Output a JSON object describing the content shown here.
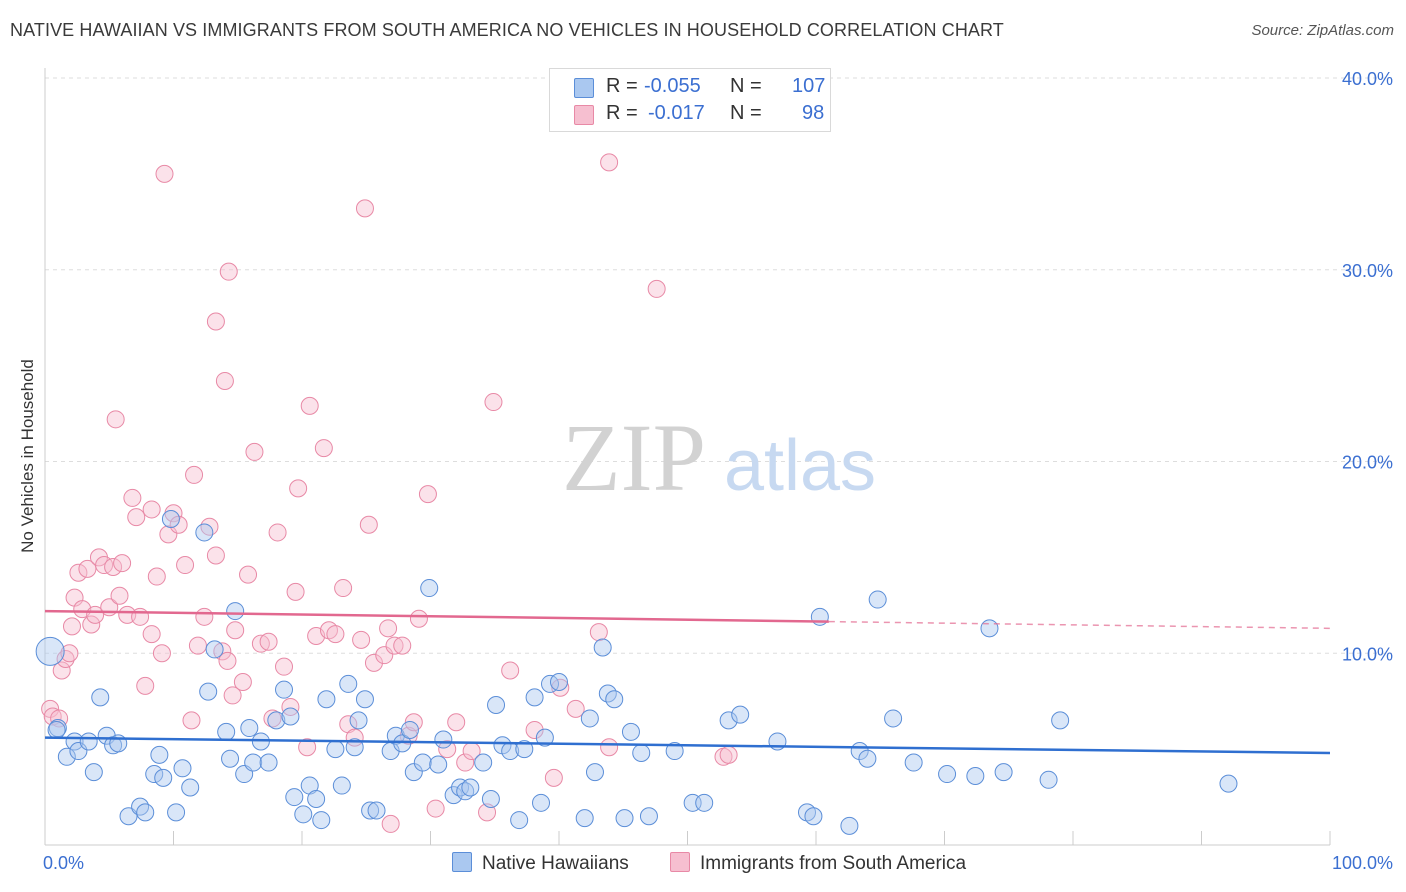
{
  "header": {
    "title": "NATIVE HAWAIIAN VS IMMIGRANTS FROM SOUTH AMERICA NO VEHICLES IN HOUSEHOLD CORRELATION CHART",
    "source": "Source: ZipAtlas.com"
  },
  "legend": {
    "rows": [
      {
        "r_label": "R =",
        "r_value": "-0.055",
        "n_label": "N =",
        "n_value": "107"
      },
      {
        "r_label": "R =",
        "r_value": "-0.017",
        "n_label": "N =",
        "n_value": "98"
      }
    ]
  },
  "watermark": {
    "zip": "ZIP",
    "atlas": "atlas"
  },
  "colors": {
    "blue_fill": "#aac8f0",
    "blue_stroke": "#5b8ed8",
    "blue_line": "#2f6fd0",
    "pink_fill": "#f6bfd0",
    "pink_stroke": "#e889a6",
    "pink_line": "#e2688f",
    "axis_text": "#3b6fd1",
    "grid": "#dddddd"
  },
  "chart_data": {
    "type": "scatter",
    "title": "NATIVE HAWAIIAN VS IMMIGRANTS FROM SOUTH AMERICA NO VEHICLES IN HOUSEHOLD CORRELATION CHART",
    "xlabel": "",
    "ylabel": "No Vehicles in Household",
    "xlim": [
      0,
      100
    ],
    "ylim": [
      0,
      40
    ],
    "x_tick_labels": [
      "0.0%",
      "100.0%"
    ],
    "y_ticks": [
      10,
      20,
      30,
      40
    ],
    "y_tick_labels": [
      "10.0%",
      "20.0%",
      "30.0%",
      "40.0%"
    ],
    "grid": true,
    "legend_position": "bottom",
    "series": [
      {
        "name": "Native Hawaiians",
        "color": "#aac8f0",
        "r": -0.055,
        "n": 107,
        "trend": {
          "x": [
            0,
            100
          ],
          "y": [
            5.6,
            4.8
          ],
          "dashed_from": null
        },
        "points": [
          [
            0.4,
            10.1
          ],
          [
            1.0,
            6.1
          ],
          [
            1.7,
            4.6
          ],
          [
            2.3,
            5.4
          ],
          [
            2.6,
            4.9
          ],
          [
            3.4,
            5.4
          ],
          [
            3.8,
            3.8
          ],
          [
            4.3,
            7.7
          ],
          [
            4.8,
            5.7
          ],
          [
            5.3,
            5.2
          ],
          [
            5.7,
            5.3
          ],
          [
            6.5,
            1.5
          ],
          [
            7.4,
            2.0
          ],
          [
            7.8,
            1.7
          ],
          [
            8.5,
            3.7
          ],
          [
            8.9,
            4.7
          ],
          [
            9.2,
            3.5
          ],
          [
            9.8,
            17.0
          ],
          [
            10.2,
            1.7
          ],
          [
            10.7,
            4.0
          ],
          [
            11.3,
            3.0
          ],
          [
            12.4,
            16.3
          ],
          [
            12.7,
            8.0
          ],
          [
            13.2,
            10.2
          ],
          [
            14.1,
            5.9
          ],
          [
            14.4,
            4.5
          ],
          [
            14.8,
            12.2
          ],
          [
            15.5,
            3.7
          ],
          [
            15.9,
            6.1
          ],
          [
            16.2,
            4.3
          ],
          [
            16.8,
            5.4
          ],
          [
            17.4,
            4.3
          ],
          [
            18.0,
            6.5
          ],
          [
            18.6,
            8.1
          ],
          [
            19.1,
            6.7
          ],
          [
            19.4,
            2.5
          ],
          [
            20.1,
            1.6
          ],
          [
            20.6,
            3.1
          ],
          [
            21.1,
            2.4
          ],
          [
            21.5,
            1.3
          ],
          [
            21.9,
            7.6
          ],
          [
            22.6,
            5.0
          ],
          [
            23.1,
            3.1
          ],
          [
            23.6,
            8.4
          ],
          [
            24.1,
            5.1
          ],
          [
            24.4,
            6.5
          ],
          [
            24.9,
            7.6
          ],
          [
            25.3,
            1.8
          ],
          [
            25.8,
            1.8
          ],
          [
            26.9,
            4.9
          ],
          [
            27.3,
            5.7
          ],
          [
            27.8,
            5.3
          ],
          [
            28.4,
            6.0
          ],
          [
            28.7,
            3.8
          ],
          [
            29.4,
            4.3
          ],
          [
            29.9,
            13.4
          ],
          [
            30.6,
            4.2
          ],
          [
            31.0,
            5.5
          ],
          [
            31.8,
            2.6
          ],
          [
            32.3,
            3.0
          ],
          [
            32.7,
            2.8
          ],
          [
            33.1,
            3.0
          ],
          [
            34.1,
            4.3
          ],
          [
            34.7,
            2.4
          ],
          [
            35.1,
            7.3
          ],
          [
            35.6,
            5.2
          ],
          [
            36.2,
            4.9
          ],
          [
            36.9,
            1.3
          ],
          [
            37.3,
            5.0
          ],
          [
            38.1,
            7.7
          ],
          [
            38.6,
            2.2
          ],
          [
            38.9,
            5.6
          ],
          [
            39.3,
            8.4
          ],
          [
            40.0,
            8.5
          ],
          [
            42.0,
            1.4
          ],
          [
            42.4,
            6.6
          ],
          [
            42.8,
            3.8
          ],
          [
            43.4,
            10.3
          ],
          [
            43.8,
            7.9
          ],
          [
            44.3,
            7.6
          ],
          [
            45.1,
            1.4
          ],
          [
            45.6,
            5.9
          ],
          [
            46.4,
            4.8
          ],
          [
            47.0,
            1.5
          ],
          [
            49.0,
            4.9
          ],
          [
            50.4,
            2.2
          ],
          [
            51.3,
            2.2
          ],
          [
            53.2,
            6.5
          ],
          [
            54.1,
            6.8
          ],
          [
            57.0,
            5.4
          ],
          [
            59.3,
            1.7
          ],
          [
            59.8,
            1.5
          ],
          [
            60.3,
            11.9
          ],
          [
            62.6,
            1.0
          ],
          [
            63.4,
            4.9
          ],
          [
            64.0,
            4.5
          ],
          [
            64.8,
            12.8
          ],
          [
            66.0,
            6.6
          ],
          [
            67.6,
            4.3
          ],
          [
            70.2,
            3.7
          ],
          [
            72.4,
            3.6
          ],
          [
            73.5,
            11.3
          ],
          [
            74.6,
            3.8
          ],
          [
            78.1,
            3.4
          ],
          [
            79.0,
            6.5
          ],
          [
            92.1,
            3.2
          ],
          [
            0.9,
            6.0
          ]
        ]
      },
      {
        "name": "Immigrants from South America",
        "color": "#f6bfd0",
        "r": -0.017,
        "n": 98,
        "trend": {
          "x": [
            0,
            100
          ],
          "y": [
            12.2,
            11.3
          ],
          "dashed_from": 61
        },
        "points": [
          [
            0.4,
            7.1
          ],
          [
            0.6,
            6.7
          ],
          [
            1.1,
            6.6
          ],
          [
            1.3,
            9.1
          ],
          [
            1.6,
            9.7
          ],
          [
            1.9,
            10.0
          ],
          [
            2.1,
            11.4
          ],
          [
            2.3,
            12.9
          ],
          [
            2.6,
            14.2
          ],
          [
            2.9,
            12.3
          ],
          [
            3.3,
            14.4
          ],
          [
            3.6,
            11.5
          ],
          [
            3.9,
            12.0
          ],
          [
            4.2,
            15.0
          ],
          [
            4.6,
            14.6
          ],
          [
            5.0,
            12.4
          ],
          [
            5.3,
            14.5
          ],
          [
            5.8,
            13.0
          ],
          [
            6.0,
            14.7
          ],
          [
            6.4,
            12.0
          ],
          [
            6.8,
            18.1
          ],
          [
            7.1,
            17.1
          ],
          [
            7.4,
            11.9
          ],
          [
            7.8,
            8.3
          ],
          [
            8.3,
            11.0
          ],
          [
            8.7,
            14.0
          ],
          [
            9.1,
            10.0
          ],
          [
            9.6,
            16.2
          ],
          [
            10.0,
            17.3
          ],
          [
            10.4,
            16.7
          ],
          [
            10.9,
            14.6
          ],
          [
            11.4,
            6.5
          ],
          [
            11.9,
            10.4
          ],
          [
            12.4,
            11.9
          ],
          [
            12.8,
            16.6
          ],
          [
            13.3,
            15.1
          ],
          [
            13.8,
            10.1
          ],
          [
            14.2,
            9.6
          ],
          [
            14.6,
            7.8
          ],
          [
            14.8,
            11.2
          ],
          [
            15.4,
            8.5
          ],
          [
            15.8,
            14.1
          ],
          [
            16.3,
            20.5
          ],
          [
            16.8,
            10.5
          ],
          [
            17.4,
            10.6
          ],
          [
            17.7,
            6.6
          ],
          [
            18.1,
            16.3
          ],
          [
            18.6,
            9.3
          ],
          [
            19.1,
            7.2
          ],
          [
            19.5,
            13.2
          ],
          [
            19.7,
            18.6
          ],
          [
            20.4,
            5.1
          ],
          [
            20.6,
            22.9
          ],
          [
            21.1,
            10.9
          ],
          [
            21.7,
            20.7
          ],
          [
            22.1,
            11.2
          ],
          [
            22.6,
            11.0
          ],
          [
            23.2,
            13.4
          ],
          [
            23.6,
            6.3
          ],
          [
            24.1,
            5.6
          ],
          [
            24.6,
            10.7
          ],
          [
            24.9,
            33.2
          ],
          [
            25.2,
            16.7
          ],
          [
            25.6,
            9.5
          ],
          [
            26.4,
            9.9
          ],
          [
            26.9,
            1.1
          ],
          [
            27.2,
            10.4
          ],
          [
            27.8,
            10.4
          ],
          [
            28.3,
            5.7
          ],
          [
            28.7,
            6.4
          ],
          [
            29.1,
            11.8
          ],
          [
            29.8,
            18.3
          ],
          [
            30.4,
            1.9
          ],
          [
            31.3,
            5.0
          ],
          [
            32.0,
            6.4
          ],
          [
            32.7,
            4.3
          ],
          [
            33.2,
            4.9
          ],
          [
            34.4,
            1.7
          ],
          [
            34.9,
            23.1
          ],
          [
            36.2,
            9.1
          ],
          [
            38.1,
            6.0
          ],
          [
            39.6,
            3.5
          ],
          [
            40.1,
            8.2
          ],
          [
            41.3,
            7.1
          ],
          [
            43.1,
            11.1
          ],
          [
            43.9,
            5.1
          ],
          [
            47.6,
            29.0
          ],
          [
            52.8,
            4.6
          ],
          [
            53.2,
            4.7
          ],
          [
            9.3,
            35.0
          ],
          [
            14.3,
            29.9
          ],
          [
            13.3,
            27.3
          ],
          [
            5.5,
            22.2
          ],
          [
            11.6,
            19.3
          ],
          [
            43.9,
            35.6
          ],
          [
            14.0,
            24.2
          ],
          [
            8.3,
            17.5
          ],
          [
            26.7,
            11.3
          ]
        ]
      }
    ]
  },
  "bottom_legend": {
    "items": [
      {
        "label": "Native Hawaiians"
      },
      {
        "label": "Immigrants from South America"
      }
    ]
  }
}
